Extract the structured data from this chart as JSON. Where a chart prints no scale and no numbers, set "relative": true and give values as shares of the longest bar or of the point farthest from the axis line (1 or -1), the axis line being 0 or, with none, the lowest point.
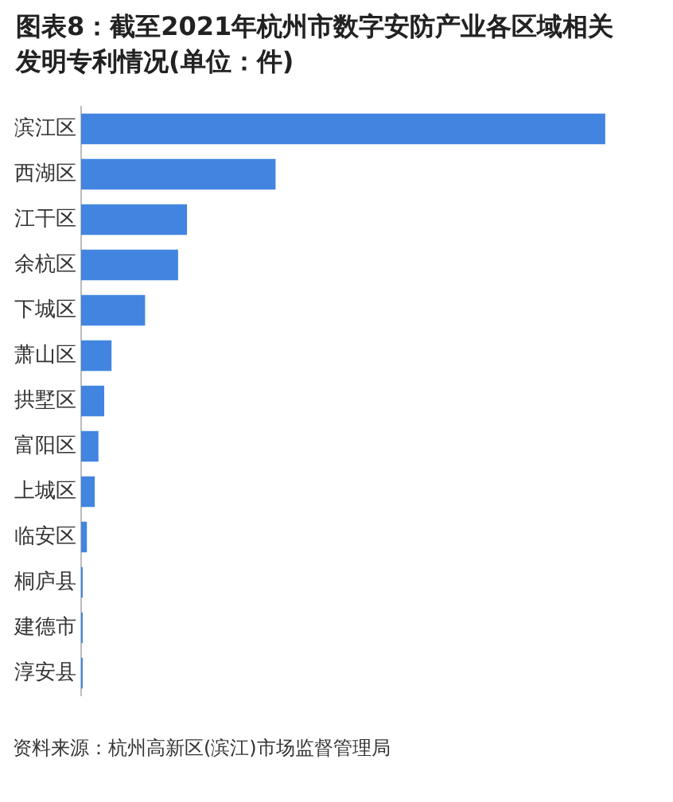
{
  "chart_data": {
    "type": "bar",
    "orientation": "horizontal",
    "relative": true,
    "legend": false,
    "title": "图表8：截至2021年杭州市数字安防产业各区域相关发明专利情况(单位：件)",
    "categories": [
      "滨江区",
      "西湖区",
      "江干区",
      "余杭区",
      "下城区",
      "萧山区",
      "拱墅区",
      "富阳区",
      "上城区",
      "临安区",
      "桐庐县",
      "建德市",
      "淳安县"
    ],
    "values": [
      1,
      0.371,
      0.202,
      0.185,
      0.122,
      0.058,
      0.044,
      0.033,
      0.026,
      0.011,
      0.003,
      0.003,
      0.003
    ],
    "color": "#4285e0",
    "annotations": [
      "资料来源：杭州高新区(滨江)市场监督管理局"
    ]
  }
}
